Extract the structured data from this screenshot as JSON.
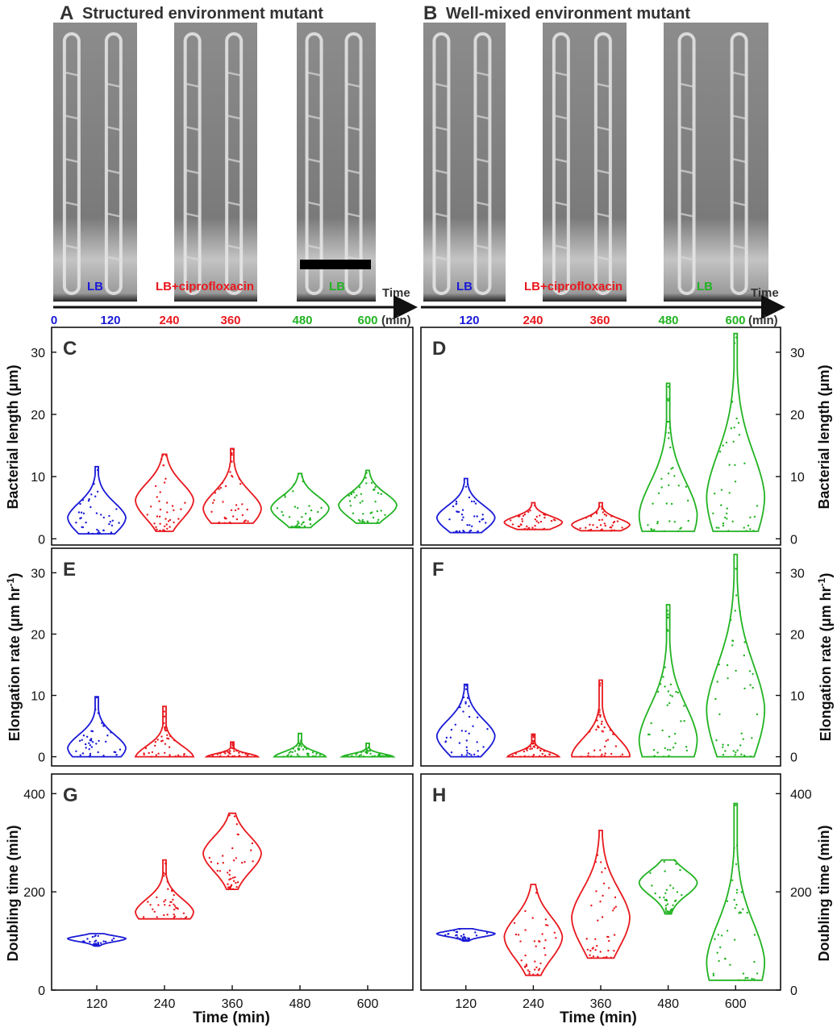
{
  "colors": {
    "blue": "#1a1ad6",
    "red": "#e8191e",
    "green": "#22b322",
    "black": "#111111"
  },
  "micrograph": {
    "a_title": "Structured environment mutant",
    "b_title": "Well-mixed environment mutant",
    "a_letter": "A",
    "b_letter": "B",
    "time_word": "Time",
    "unit": "(min)",
    "lb": "LB",
    "lb_cipro": "LB+ciprofloxacin",
    "ticks": [
      "0",
      "120",
      "240",
      "360",
      "480",
      "600"
    ]
  },
  "axes": {
    "length_label": "Bacterial length (μm)",
    "elong_label_main": "Elongation rate (μm hr",
    "elong_label_sup": "-1",
    "elong_label_end": ")",
    "doubling_label": "Doubling time (min)",
    "x_label": "Time (min)",
    "x_ticks": [
      "120",
      "240",
      "360",
      "480",
      "600"
    ]
  },
  "chart_data": [
    {
      "panel": "C",
      "type": "violin",
      "ylabel": "Bacterial length (μm)",
      "ylim": [
        -1,
        34
      ],
      "yticks": [
        0,
        10,
        20,
        30
      ],
      "xlabel": "",
      "categories": [
        "120",
        "240",
        "360",
        "480",
        "600"
      ],
      "annotations": [
        "LB",
        "LB+ciprofloxacin",
        "LB"
      ],
      "series": [
        {
          "x": "120",
          "condition": "LB",
          "min": 0.8,
          "max": 11.6,
          "median": 3.5
        },
        {
          "x": "240",
          "condition": "LB+ciprofloxacin",
          "min": 1.2,
          "max": 13.6,
          "median": 6.3
        },
        {
          "x": "360",
          "condition": "LB+ciprofloxacin",
          "min": 2.5,
          "max": 14.5,
          "median": 5
        },
        {
          "x": "480",
          "condition": "LB",
          "min": 1.8,
          "max": 10.5,
          "median": 5
        },
        {
          "x": "600",
          "condition": "LB",
          "min": 2.5,
          "max": 11,
          "median": 5.5
        }
      ]
    },
    {
      "panel": "D",
      "type": "violin",
      "ylabel": "Bacterial length (μm)",
      "ylim": [
        -1,
        34
      ],
      "yticks": [
        0,
        10,
        20,
        30
      ],
      "categories": [
        "120",
        "240",
        "360",
        "480",
        "600"
      ],
      "annotations": [
        "LB",
        "LB+ciprofloxacin",
        "LB"
      ],
      "series": [
        {
          "x": "120",
          "condition": "LB",
          "min": 1,
          "max": 9.7,
          "median": 3.5
        },
        {
          "x": "240",
          "condition": "LB+ciprofloxacin",
          "min": 1.5,
          "max": 5.8,
          "median": 2.7
        },
        {
          "x": "360",
          "condition": "LB+ciprofloxacin",
          "min": 1.3,
          "max": 5.8,
          "median": 2.3
        },
        {
          "x": "480",
          "condition": "LB",
          "min": 1.2,
          "max": 25,
          "median": 4
        },
        {
          "x": "600",
          "condition": "LB",
          "min": 1.2,
          "max": 33,
          "median": 7
        }
      ]
    },
    {
      "panel": "E",
      "type": "violin",
      "ylabel": "Elongation rate (μm hr-1)",
      "ylim": [
        -1.5,
        34
      ],
      "yticks": [
        0,
        10,
        20,
        30
      ],
      "categories": [
        "120",
        "240",
        "360",
        "480",
        "600"
      ],
      "series": [
        {
          "x": "120",
          "condition": "LB",
          "min": 0,
          "max": 9.8,
          "median": 1.5
        },
        {
          "x": "240",
          "condition": "LB+ciprofloxacin",
          "min": 0,
          "max": 8.2,
          "median": 0
        },
        {
          "x": "360",
          "condition": "LB+ciprofloxacin",
          "min": 0,
          "max": 2.4,
          "median": 0
        },
        {
          "x": "480",
          "condition": "LB",
          "min": 0,
          "max": 3.8,
          "median": 0
        },
        {
          "x": "600",
          "condition": "LB",
          "min": 0,
          "max": 2.2,
          "median": 0
        }
      ]
    },
    {
      "panel": "F",
      "type": "violin",
      "ylabel": "Elongation rate (μm hr-1)",
      "ylim": [
        -1.5,
        34
      ],
      "yticks": [
        0,
        10,
        20,
        30
      ],
      "categories": [
        "120",
        "240",
        "360",
        "480",
        "600"
      ],
      "series": [
        {
          "x": "120",
          "condition": "LB",
          "min": 0,
          "max": 11.8,
          "median": 3.5
        },
        {
          "x": "240",
          "condition": "LB+ciprofloxacin",
          "min": 0,
          "max": 3.7,
          "median": 0
        },
        {
          "x": "360",
          "condition": "LB+ciprofloxacin",
          "min": 0,
          "max": 12.5,
          "median": 0.3
        },
        {
          "x": "480",
          "condition": "LB",
          "min": 0,
          "max": 24.8,
          "median": 3
        },
        {
          "x": "600",
          "condition": "LB",
          "min": 0,
          "max": 33,
          "median": 8
        }
      ]
    },
    {
      "panel": "G",
      "type": "violin",
      "ylabel": "Doubling time (min)",
      "ylim": [
        0,
        440
      ],
      "yticks": [
        0,
        200,
        400
      ],
      "xlabel": "Time (min)",
      "categories": [
        "120",
        "240",
        "360",
        "480",
        "600"
      ],
      "series": [
        {
          "x": "120",
          "condition": "LB",
          "min": 90,
          "max": 115,
          "median": 105
        },
        {
          "x": "240",
          "condition": "LB+ciprofloxacin",
          "min": 145,
          "max": 265,
          "median": 160
        },
        {
          "x": "360",
          "condition": "LB+ciprofloxacin",
          "min": 205,
          "max": 360,
          "median": 280
        }
      ]
    },
    {
      "panel": "H",
      "type": "violin",
      "ylabel": "Doubling time (min)",
      "ylim": [
        0,
        440
      ],
      "yticks": [
        0,
        200,
        400
      ],
      "xlabel": "Time (min)",
      "categories": [
        "120",
        "240",
        "360",
        "480",
        "600"
      ],
      "series": [
        {
          "x": "120",
          "condition": "LB",
          "min": 100,
          "max": 125,
          "median": 115
        },
        {
          "x": "240",
          "condition": "LB+ciprofloxacin",
          "min": 30,
          "max": 215,
          "median": 110
        },
        {
          "x": "360",
          "condition": "LB+ciprofloxacin",
          "min": 65,
          "max": 325,
          "median": 150
        },
        {
          "x": "480",
          "condition": "LB",
          "min": 155,
          "max": 265,
          "median": 220
        },
        {
          "x": "600",
          "condition": "LB",
          "min": 20,
          "max": 380,
          "median": 60
        }
      ]
    }
  ]
}
